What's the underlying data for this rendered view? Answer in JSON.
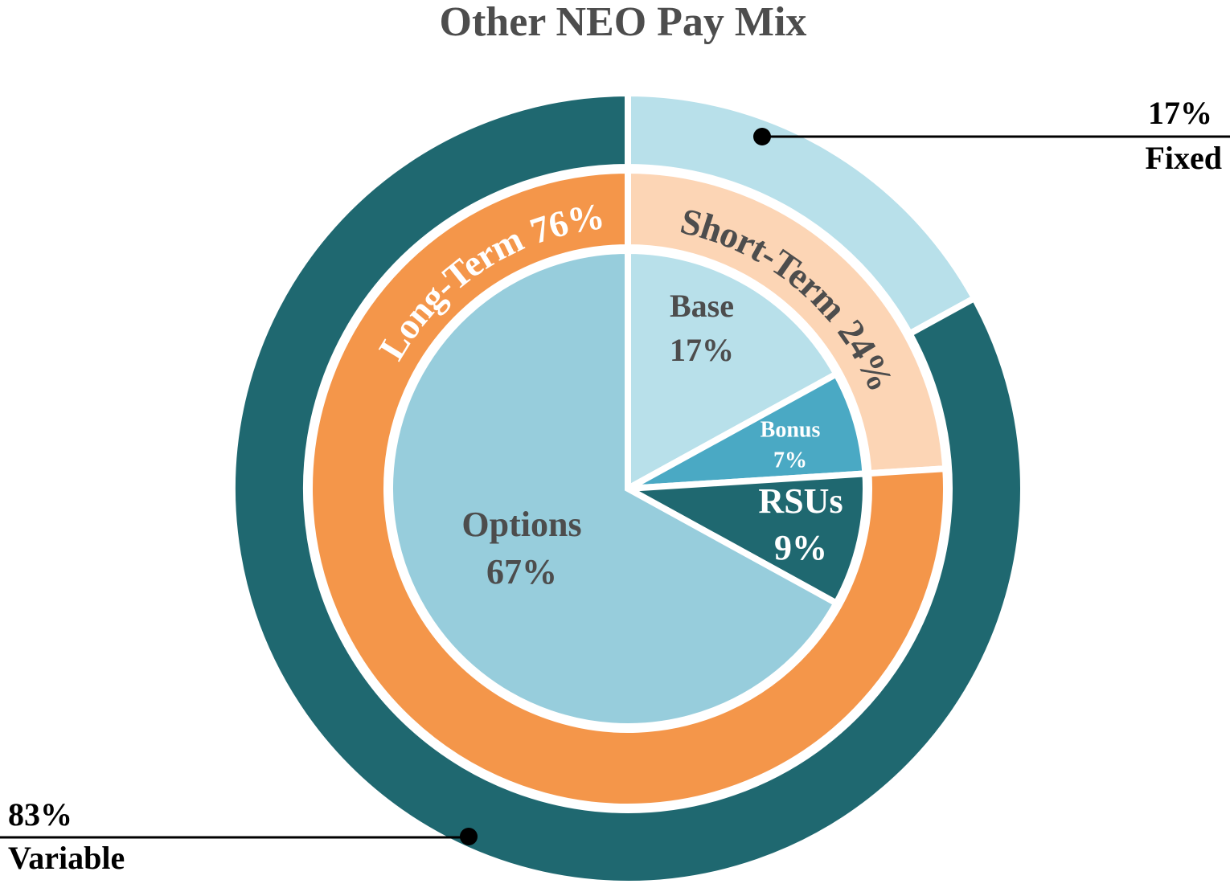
{
  "chart_data": {
    "type": "sunburst",
    "title": "Other NEO Pay Mix",
    "rings": [
      {
        "categories": [
          "Base",
          "Bonus",
          "RSUs",
          "Options"
        ],
        "values": [
          17,
          7,
          9,
          67
        ],
        "value_labels": [
          "17%",
          "7%",
          "9%",
          "67%"
        ],
        "colors": [
          "#b8e0ea",
          "#4aa9c4",
          "#1f6870",
          "#97cddc"
        ]
      },
      {
        "categories": [
          "Short-Term",
          "Long-Term"
        ],
        "values": [
          24,
          76
        ],
        "value_labels": [
          "24%",
          "76%"
        ],
        "colors": [
          "#fcd5b5",
          "#f4964a"
        ]
      },
      {
        "categories": [
          "Fixed",
          "Variable"
        ],
        "values": [
          17,
          83
        ],
        "value_labels": [
          "17%",
          "83%"
        ],
        "colors": [
          "#b8e0ea",
          "#1f6870"
        ]
      }
    ]
  }
}
